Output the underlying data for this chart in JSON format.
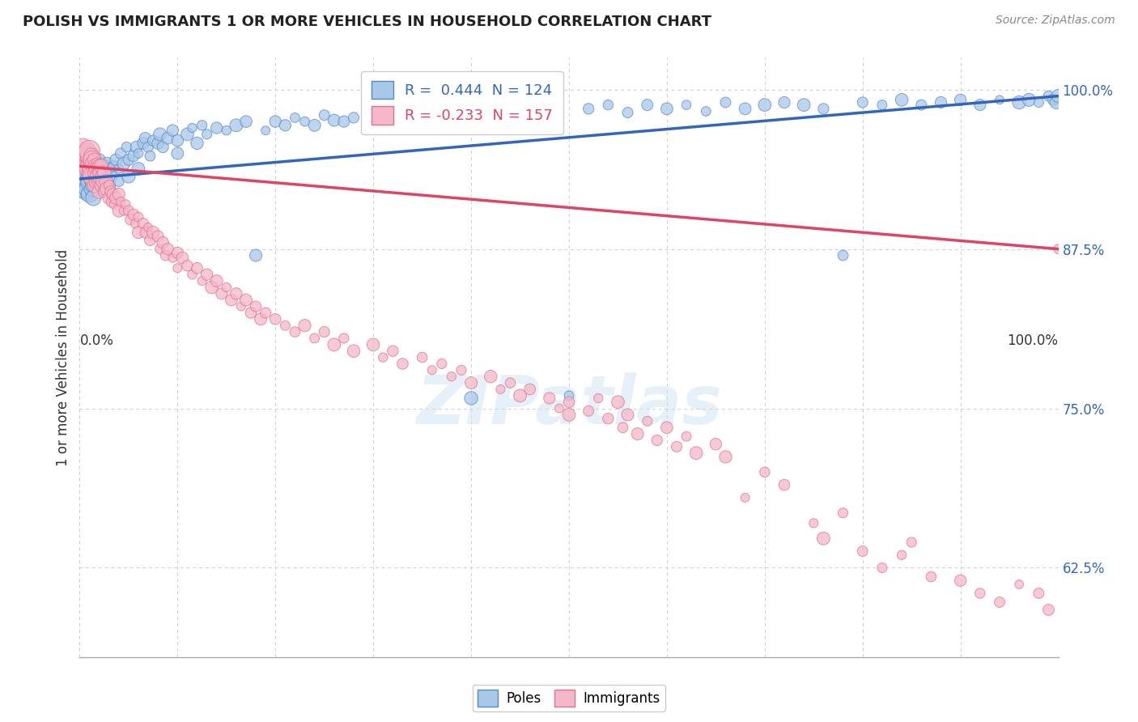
{
  "title": "POLISH VS IMMIGRANTS 1 OR MORE VEHICLES IN HOUSEHOLD CORRELATION CHART",
  "source": "Source: ZipAtlas.com",
  "ylabel": "1 or more Vehicles in Household",
  "xlim": [
    0.0,
    1.0
  ],
  "ylim": [
    0.555,
    1.025
  ],
  "yticks": [
    0.625,
    0.75,
    0.875,
    1.0
  ],
  "ytick_labels": [
    "62.5%",
    "75.0%",
    "87.5%",
    "100.0%"
  ],
  "poles_color": "#A8C8E8",
  "immigrants_color": "#F4B8C8",
  "poles_edge_color": "#5588CC",
  "immigrants_edge_color": "#E07090",
  "poles_line_color": "#3366BB",
  "immigrants_line_color": "#DD4466",
  "poles_R": 0.444,
  "poles_N": 124,
  "immigrants_R": -0.233,
  "immigrants_N": 157,
  "watermark": "ZIPatlas",
  "background_color": "#ffffff",
  "grid_color": "#cccccc",
  "poles_data": [
    [
      0.002,
      0.93
    ],
    [
      0.003,
      0.925
    ],
    [
      0.004,
      0.935
    ],
    [
      0.005,
      0.928
    ],
    [
      0.006,
      0.932
    ],
    [
      0.007,
      0.92
    ],
    [
      0.008,
      0.935
    ],
    [
      0.009,
      0.922
    ],
    [
      0.01,
      0.93
    ],
    [
      0.01,
      0.94
    ],
    [
      0.01,
      0.918
    ],
    [
      0.011,
      0.928
    ],
    [
      0.012,
      0.935
    ],
    [
      0.012,
      0.922
    ],
    [
      0.013,
      0.93
    ],
    [
      0.013,
      0.94
    ],
    [
      0.014,
      0.925
    ],
    [
      0.014,
      0.915
    ],
    [
      0.015,
      0.932
    ],
    [
      0.015,
      0.942
    ],
    [
      0.016,
      0.928
    ],
    [
      0.016,
      0.938
    ],
    [
      0.017,
      0.925
    ],
    [
      0.017,
      0.935
    ],
    [
      0.018,
      0.93
    ],
    [
      0.019,
      0.928
    ],
    [
      0.02,
      0.935
    ],
    [
      0.02,
      0.945
    ],
    [
      0.021,
      0.93
    ],
    [
      0.022,
      0.938
    ],
    [
      0.023,
      0.925
    ],
    [
      0.024,
      0.932
    ],
    [
      0.025,
      0.94
    ],
    [
      0.025,
      0.928
    ],
    [
      0.027,
      0.935
    ],
    [
      0.028,
      0.942
    ],
    [
      0.03,
      0.938
    ],
    [
      0.03,
      0.925
    ],
    [
      0.032,
      0.932
    ],
    [
      0.035,
      0.94
    ],
    [
      0.037,
      0.945
    ],
    [
      0.04,
      0.938
    ],
    [
      0.04,
      0.928
    ],
    [
      0.042,
      0.95
    ],
    [
      0.045,
      0.942
    ],
    [
      0.048,
      0.955
    ],
    [
      0.05,
      0.945
    ],
    [
      0.05,
      0.932
    ],
    [
      0.055,
      0.948
    ],
    [
      0.058,
      0.955
    ],
    [
      0.06,
      0.95
    ],
    [
      0.06,
      0.938
    ],
    [
      0.065,
      0.958
    ],
    [
      0.067,
      0.962
    ],
    [
      0.07,
      0.955
    ],
    [
      0.072,
      0.948
    ],
    [
      0.075,
      0.96
    ],
    [
      0.08,
      0.958
    ],
    [
      0.082,
      0.965
    ],
    [
      0.085,
      0.955
    ],
    [
      0.09,
      0.962
    ],
    [
      0.095,
      0.968
    ],
    [
      0.1,
      0.96
    ],
    [
      0.1,
      0.95
    ],
    [
      0.11,
      0.965
    ],
    [
      0.115,
      0.97
    ],
    [
      0.12,
      0.958
    ],
    [
      0.125,
      0.972
    ],
    [
      0.13,
      0.965
    ],
    [
      0.14,
      0.97
    ],
    [
      0.15,
      0.968
    ],
    [
      0.16,
      0.972
    ],
    [
      0.17,
      0.975
    ],
    [
      0.18,
      0.87
    ],
    [
      0.19,
      0.968
    ],
    [
      0.2,
      0.975
    ],
    [
      0.21,
      0.972
    ],
    [
      0.22,
      0.978
    ],
    [
      0.23,
      0.975
    ],
    [
      0.24,
      0.972
    ],
    [
      0.25,
      0.98
    ],
    [
      0.26,
      0.976
    ],
    [
      0.27,
      0.975
    ],
    [
      0.28,
      0.978
    ],
    [
      0.3,
      0.982
    ],
    [
      0.31,
      0.975
    ],
    [
      0.32,
      0.98
    ],
    [
      0.33,
      0.977
    ],
    [
      0.35,
      0.983
    ],
    [
      0.37,
      0.978
    ],
    [
      0.39,
      0.982
    ],
    [
      0.4,
      0.758
    ],
    [
      0.42,
      0.985
    ],
    [
      0.44,
      0.98
    ],
    [
      0.46,
      0.985
    ],
    [
      0.48,
      0.978
    ],
    [
      0.5,
      0.76
    ],
    [
      0.52,
      0.985
    ],
    [
      0.54,
      0.988
    ],
    [
      0.56,
      0.982
    ],
    [
      0.58,
      0.988
    ],
    [
      0.6,
      0.985
    ],
    [
      0.62,
      0.988
    ],
    [
      0.64,
      0.983
    ],
    [
      0.66,
      0.99
    ],
    [
      0.68,
      0.985
    ],
    [
      0.7,
      0.988
    ],
    [
      0.72,
      0.99
    ],
    [
      0.74,
      0.988
    ],
    [
      0.76,
      0.985
    ],
    [
      0.78,
      0.87
    ],
    [
      0.8,
      0.99
    ],
    [
      0.82,
      0.988
    ],
    [
      0.84,
      0.992
    ],
    [
      0.86,
      0.988
    ],
    [
      0.88,
      0.99
    ],
    [
      0.9,
      0.992
    ],
    [
      0.92,
      0.988
    ],
    [
      0.94,
      0.992
    ],
    [
      0.96,
      0.99
    ],
    [
      0.97,
      0.992
    ],
    [
      0.98,
      0.99
    ],
    [
      0.99,
      0.995
    ],
    [
      0.995,
      0.992
    ],
    [
      0.998,
      0.99
    ],
    [
      1.0,
      0.995
    ]
  ],
  "immigrants_data": [
    [
      0.003,
      0.952
    ],
    [
      0.005,
      0.945
    ],
    [
      0.006,
      0.948
    ],
    [
      0.007,
      0.94
    ],
    [
      0.008,
      0.95
    ],
    [
      0.009,
      0.942
    ],
    [
      0.01,
      0.948
    ],
    [
      0.01,
      0.938
    ],
    [
      0.01,
      0.952
    ],
    [
      0.011,
      0.944
    ],
    [
      0.011,
      0.935
    ],
    [
      0.012,
      0.948
    ],
    [
      0.012,
      0.938
    ],
    [
      0.013,
      0.945
    ],
    [
      0.013,
      0.935
    ],
    [
      0.014,
      0.942
    ],
    [
      0.014,
      0.932
    ],
    [
      0.015,
      0.945
    ],
    [
      0.015,
      0.935
    ],
    [
      0.015,
      0.925
    ],
    [
      0.016,
      0.94
    ],
    [
      0.016,
      0.93
    ],
    [
      0.017,
      0.938
    ],
    [
      0.017,
      0.928
    ],
    [
      0.018,
      0.942
    ],
    [
      0.018,
      0.932
    ],
    [
      0.019,
      0.938
    ],
    [
      0.019,
      0.928
    ],
    [
      0.02,
      0.94
    ],
    [
      0.02,
      0.93
    ],
    [
      0.02,
      0.92
    ],
    [
      0.021,
      0.935
    ],
    [
      0.022,
      0.94
    ],
    [
      0.022,
      0.925
    ],
    [
      0.023,
      0.932
    ],
    [
      0.024,
      0.928
    ],
    [
      0.025,
      0.935
    ],
    [
      0.025,
      0.92
    ],
    [
      0.027,
      0.928
    ],
    [
      0.028,
      0.922
    ],
    [
      0.03,
      0.925
    ],
    [
      0.03,
      0.915
    ],
    [
      0.032,
      0.92
    ],
    [
      0.033,
      0.912
    ],
    [
      0.034,
      0.918
    ],
    [
      0.035,
      0.91
    ],
    [
      0.037,
      0.915
    ],
    [
      0.04,
      0.918
    ],
    [
      0.04,
      0.905
    ],
    [
      0.042,
      0.912
    ],
    [
      0.045,
      0.905
    ],
    [
      0.047,
      0.91
    ],
    [
      0.05,
      0.905
    ],
    [
      0.052,
      0.898
    ],
    [
      0.055,
      0.902
    ],
    [
      0.057,
      0.895
    ],
    [
      0.06,
      0.9
    ],
    [
      0.06,
      0.888
    ],
    [
      0.065,
      0.895
    ],
    [
      0.068,
      0.888
    ],
    [
      0.07,
      0.892
    ],
    [
      0.072,
      0.882
    ],
    [
      0.075,
      0.888
    ],
    [
      0.08,
      0.885
    ],
    [
      0.082,
      0.875
    ],
    [
      0.085,
      0.88
    ],
    [
      0.088,
      0.87
    ],
    [
      0.09,
      0.875
    ],
    [
      0.095,
      0.868
    ],
    [
      0.1,
      0.872
    ],
    [
      0.1,
      0.86
    ],
    [
      0.105,
      0.868
    ],
    [
      0.11,
      0.862
    ],
    [
      0.115,
      0.855
    ],
    [
      0.12,
      0.86
    ],
    [
      0.125,
      0.85
    ],
    [
      0.13,
      0.855
    ],
    [
      0.135,
      0.845
    ],
    [
      0.14,
      0.85
    ],
    [
      0.145,
      0.84
    ],
    [
      0.15,
      0.845
    ],
    [
      0.155,
      0.835
    ],
    [
      0.16,
      0.84
    ],
    [
      0.165,
      0.83
    ],
    [
      0.17,
      0.835
    ],
    [
      0.175,
      0.825
    ],
    [
      0.18,
      0.83
    ],
    [
      0.185,
      0.82
    ],
    [
      0.19,
      0.825
    ],
    [
      0.2,
      0.82
    ],
    [
      0.21,
      0.815
    ],
    [
      0.22,
      0.81
    ],
    [
      0.23,
      0.815
    ],
    [
      0.24,
      0.805
    ],
    [
      0.25,
      0.81
    ],
    [
      0.26,
      0.8
    ],
    [
      0.27,
      0.805
    ],
    [
      0.28,
      0.795
    ],
    [
      0.3,
      0.8
    ],
    [
      0.31,
      0.79
    ],
    [
      0.32,
      0.795
    ],
    [
      0.33,
      0.785
    ],
    [
      0.35,
      0.79
    ],
    [
      0.36,
      0.78
    ],
    [
      0.37,
      0.785
    ],
    [
      0.38,
      0.775
    ],
    [
      0.39,
      0.78
    ],
    [
      0.4,
      0.77
    ],
    [
      0.42,
      0.775
    ],
    [
      0.43,
      0.765
    ],
    [
      0.44,
      0.77
    ],
    [
      0.45,
      0.76
    ],
    [
      0.46,
      0.765
    ],
    [
      0.48,
      0.758
    ],
    [
      0.49,
      0.75
    ],
    [
      0.5,
      0.755
    ],
    [
      0.5,
      0.745
    ],
    [
      0.52,
      0.748
    ],
    [
      0.53,
      0.758
    ],
    [
      0.54,
      0.742
    ],
    [
      0.55,
      0.755
    ],
    [
      0.555,
      0.735
    ],
    [
      0.56,
      0.745
    ],
    [
      0.57,
      0.73
    ],
    [
      0.58,
      0.74
    ],
    [
      0.59,
      0.725
    ],
    [
      0.6,
      0.735
    ],
    [
      0.61,
      0.72
    ],
    [
      0.62,
      0.728
    ],
    [
      0.63,
      0.715
    ],
    [
      0.65,
      0.722
    ],
    [
      0.66,
      0.712
    ],
    [
      0.68,
      0.68
    ],
    [
      0.7,
      0.7
    ],
    [
      0.72,
      0.69
    ],
    [
      0.75,
      0.66
    ],
    [
      0.76,
      0.648
    ],
    [
      0.78,
      0.668
    ],
    [
      0.8,
      0.638
    ],
    [
      0.82,
      0.625
    ],
    [
      0.84,
      0.635
    ],
    [
      0.85,
      0.645
    ],
    [
      0.87,
      0.618
    ],
    [
      0.9,
      0.615
    ],
    [
      0.92,
      0.605
    ],
    [
      0.94,
      0.598
    ],
    [
      0.96,
      0.612
    ],
    [
      0.98,
      0.605
    ],
    [
      0.99,
      0.592
    ],
    [
      1.0,
      0.875
    ]
  ]
}
